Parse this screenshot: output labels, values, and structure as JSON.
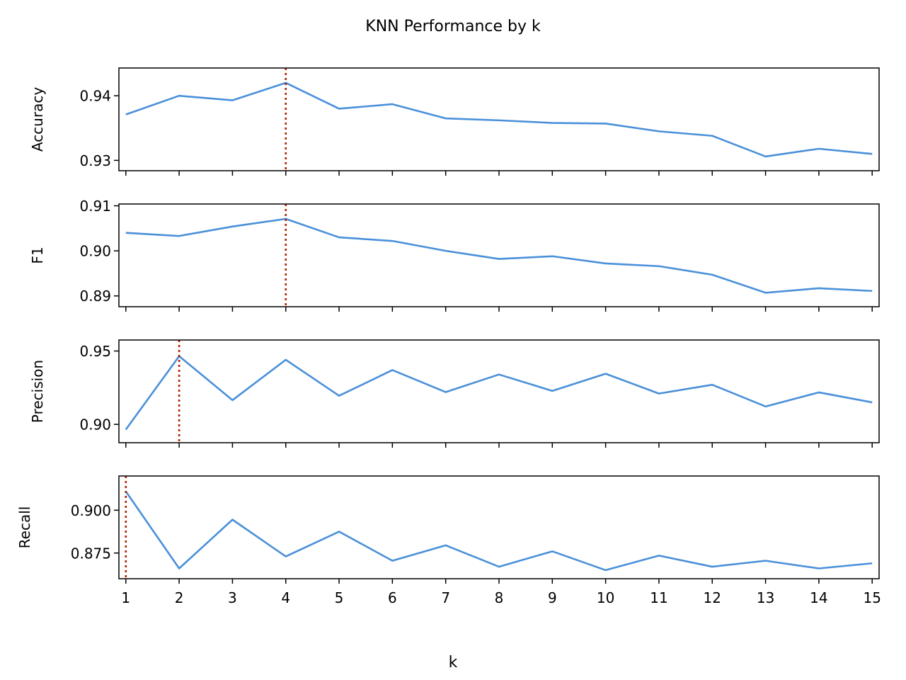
{
  "figure": {
    "title": "KNN Performance by k",
    "xlabel": "k"
  },
  "chart_data": [
    {
      "type": "line",
      "ylabel": "Accuracy",
      "x": [
        1,
        2,
        3,
        4,
        5,
        6,
        7,
        8,
        9,
        10,
        11,
        12,
        13,
        14,
        15
      ],
      "values": [
        0.9371,
        0.94,
        0.9393,
        0.942,
        0.938,
        0.9387,
        0.9365,
        0.9362,
        0.9358,
        0.9357,
        0.9345,
        0.9338,
        0.9306,
        0.9318,
        0.931
      ],
      "xlim": [
        0.87,
        15.13
      ],
      "ylim": [
        0.9284,
        0.9443
      ],
      "yticks": [
        0.93,
        0.94
      ],
      "ytick_labels": [
        "0.93",
        "0.94"
      ],
      "best_k": 4,
      "line_color": "#4a90d9",
      "marker_color": "#b22200"
    },
    {
      "type": "line",
      "ylabel": "F1",
      "x": [
        1,
        2,
        3,
        4,
        5,
        6,
        7,
        8,
        9,
        10,
        11,
        12,
        13,
        14,
        15
      ],
      "values": [
        0.904,
        0.9033,
        0.9054,
        0.9071,
        0.903,
        0.9022,
        0.9,
        0.8982,
        0.8988,
        0.8972,
        0.8966,
        0.8947,
        0.8907,
        0.8917,
        0.8911
      ],
      "xlim": [
        0.87,
        15.13
      ],
      "ylim": [
        0.8876,
        0.9104
      ],
      "yticks": [
        0.89,
        0.9,
        0.91
      ],
      "ytick_labels": [
        "0.89",
        "0.90",
        "0.91"
      ],
      "best_k": 4,
      "line_color": "#4a90d9",
      "marker_color": "#b22200"
    },
    {
      "type": "line",
      "ylabel": "Precision",
      "x": [
        1,
        2,
        3,
        4,
        5,
        6,
        7,
        8,
        9,
        10,
        11,
        12,
        13,
        14,
        15
      ],
      "values": [
        0.8965,
        0.9465,
        0.9165,
        0.944,
        0.9195,
        0.937,
        0.922,
        0.934,
        0.9228,
        0.9345,
        0.921,
        0.927,
        0.9122,
        0.9218,
        0.915
      ],
      "xlim": [
        0.87,
        15.13
      ],
      "ylim": [
        0.8875,
        0.9575
      ],
      "yticks": [
        0.9,
        0.95
      ],
      "ytick_labels": [
        "0.90",
        "0.95"
      ],
      "best_k": 2,
      "line_color": "#4a90d9",
      "marker_color": "#b22200"
    },
    {
      "type": "line",
      "ylabel": "Recall",
      "x": [
        1,
        2,
        3,
        4,
        5,
        6,
        7,
        8,
        9,
        10,
        11,
        12,
        13,
        14,
        15
      ],
      "values": [
        0.911,
        0.866,
        0.8945,
        0.873,
        0.8875,
        0.8705,
        0.8795,
        0.867,
        0.876,
        0.865,
        0.8735,
        0.867,
        0.8705,
        0.866,
        0.869
      ],
      "xlim": [
        0.87,
        15.13
      ],
      "ylim": [
        0.86,
        0.92
      ],
      "yticks": [
        0.875,
        0.9
      ],
      "ytick_labels": [
        "0.875",
        "0.900"
      ],
      "best_k": 1,
      "line_color": "#4a90d9",
      "marker_color": "#b22200"
    }
  ],
  "xticks": [
    1,
    2,
    3,
    4,
    5,
    6,
    7,
    8,
    9,
    10,
    11,
    12,
    13,
    14,
    15
  ],
  "xtick_labels": [
    "1",
    "2",
    "3",
    "4",
    "5",
    "6",
    "7",
    "8",
    "9",
    "10",
    "11",
    "12",
    "13",
    "14",
    "15"
  ]
}
